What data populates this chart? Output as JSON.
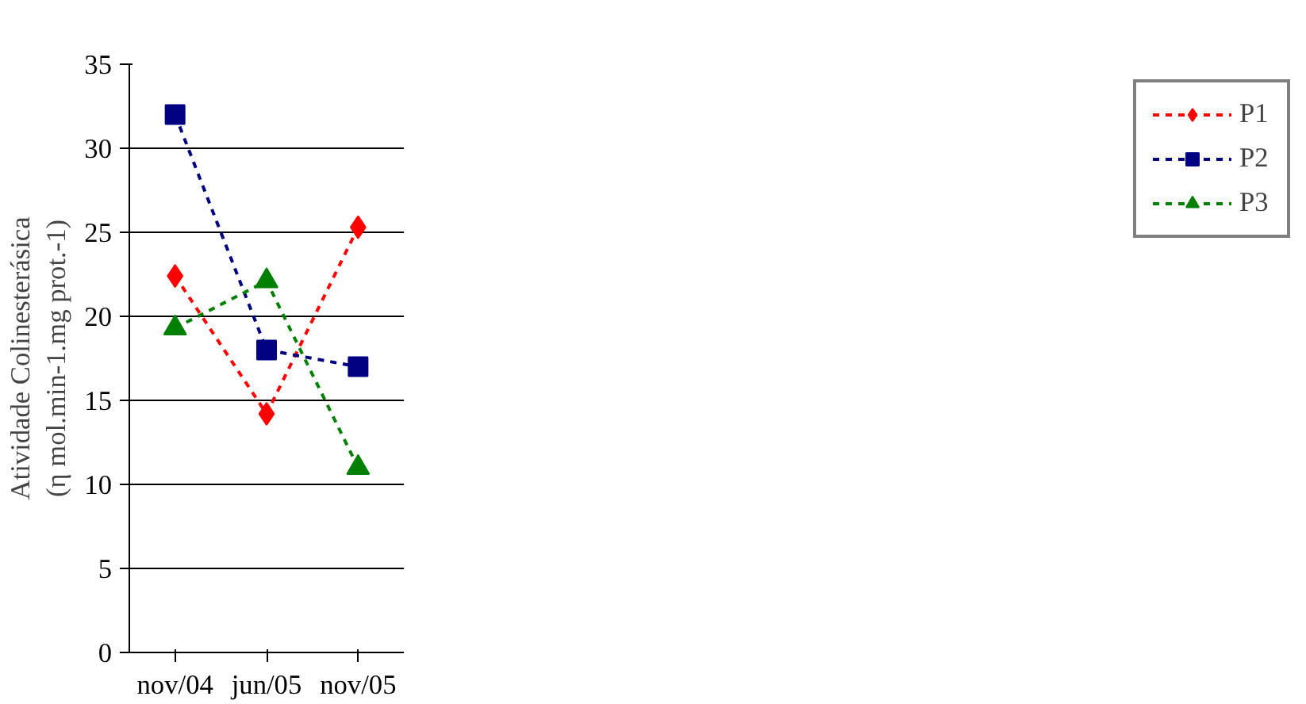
{
  "chart_data": {
    "type": "line",
    "ylabel": "Atividade Colinesterásica\n(η mol.min-1.mg prot.-1)",
    "categories": [
      "nov/04",
      "jun/05",
      "nov/05"
    ],
    "series": [
      {
        "name": "P1",
        "color": "#ff0000",
        "marker": "diamond",
        "values": [
          22.4,
          14.2,
          25.3
        ]
      },
      {
        "name": "P2",
        "color": "#000080",
        "marker": "square",
        "values": [
          32.0,
          18.0,
          17.0
        ]
      },
      {
        "name": "P3",
        "color": "#008000",
        "marker": "triangle",
        "values": [
          19.3,
          22.1,
          11.0
        ]
      }
    ],
    "ylim": [
      0,
      35
    ],
    "yticks": [
      0,
      5,
      10,
      15,
      20,
      25,
      30,
      35
    ],
    "grid": "y",
    "legend": "right",
    "line_style": "dashed"
  }
}
